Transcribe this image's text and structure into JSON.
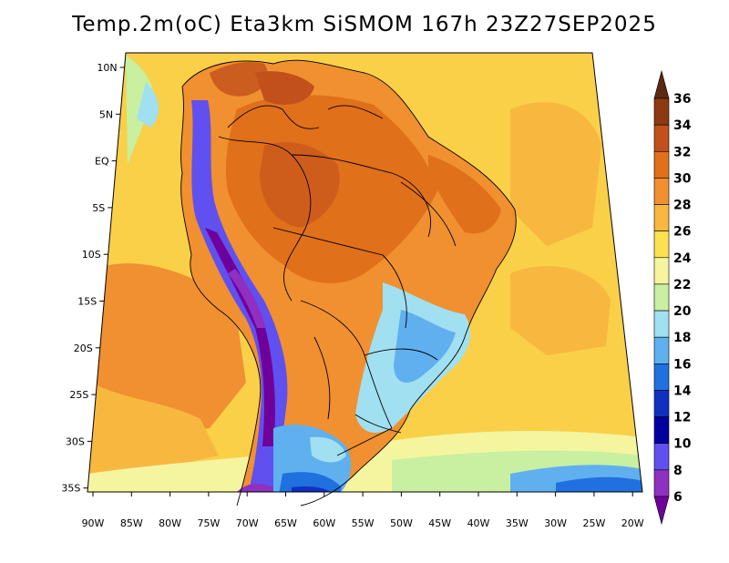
{
  "map": {
    "title": "Temp.2m(oC) Eta3km SiSMOM 167h 23Z27SEP2025",
    "lat_labels": [
      "10N",
      "5N",
      "EQ",
      "5S",
      "10S",
      "15S",
      "20S",
      "25S",
      "30S",
      "35S"
    ],
    "lon_labels": [
      "90W",
      "85W",
      "80W",
      "75W",
      "70W",
      "65W",
      "60W",
      "55W",
      "50W",
      "45W",
      "40W",
      "35W",
      "30W",
      "25W",
      "20W"
    ]
  },
  "colorbar": {
    "labels": [
      "36",
      "34",
      "32",
      "30",
      "28",
      "26",
      "24",
      "22",
      "20",
      "18",
      "16",
      "14",
      "12",
      "10",
      "8",
      "6"
    ],
    "colors": [
      "#5c2a10",
      "#8b3a12",
      "#c2501c",
      "#e0701a",
      "#f09030",
      "#f8b840",
      "#fbe050",
      "#f5f5a0",
      "#c8f0a0",
      "#a0e0f0",
      "#60b0f0",
      "#2070e0",
      "#1030c0",
      "#0000a0",
      "#6050f0",
      "#9030c0",
      "#70009a"
    ]
  }
}
